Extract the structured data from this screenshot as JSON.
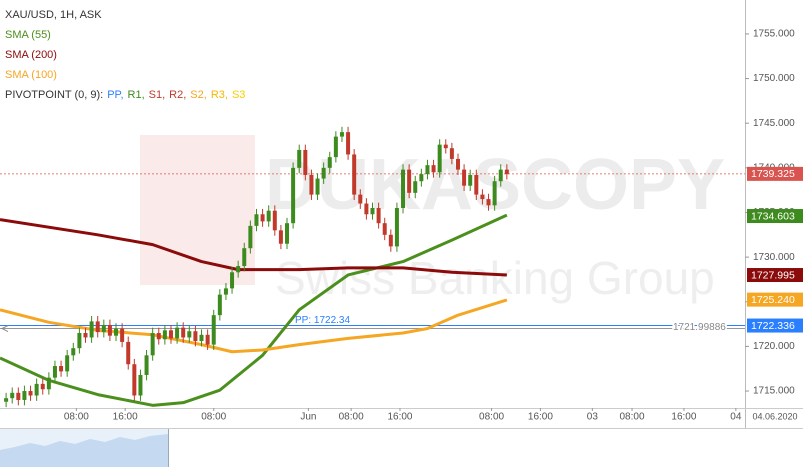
{
  "chart_data": {
    "type": "candlestick",
    "title": "XAU/USD, 1H, ASK",
    "watermark": [
      "DUKASCOPY",
      "Swiss Banking Group"
    ],
    "corner_label": "04.06.2020",
    "up_color": "#3d8b1e",
    "down_color": "#c0392b",
    "x": [
      1,
      2,
      3,
      4,
      5,
      6,
      7,
      8,
      9,
      10,
      11,
      12,
      13,
      14,
      15,
      16,
      17,
      18,
      19,
      20,
      21,
      22,
      23,
      24,
      25,
      26,
      27,
      28,
      29,
      30,
      31,
      32,
      33,
      34,
      35,
      36,
      37,
      38,
      39,
      40,
      41,
      42,
      43,
      44,
      45,
      46,
      47,
      48,
      49,
      50,
      51,
      52,
      53,
      54,
      55,
      56,
      57,
      58,
      59,
      60,
      61,
      62,
      63,
      64,
      65,
      66,
      67,
      68,
      69,
      70,
      71,
      72,
      73,
      74,
      75,
      76,
      77,
      78,
      79,
      80,
      81,
      82,
      83
    ],
    "open": [
      1713.8,
      1714.2,
      1714.8,
      1714.0,
      1715.0,
      1714.5,
      1715.8,
      1715.2,
      1716.5,
      1717.8,
      1717.2,
      1719.0,
      1719.8,
      1721.5,
      1721.0,
      1722.8,
      1721.6,
      1722.4,
      1721.2,
      1722.0,
      1720.5,
      1718.0,
      1714.5,
      1716.8,
      1719.0,
      1721.5,
      1720.8,
      1721.8,
      1720.9,
      1722.1,
      1721.0,
      1721.7,
      1720.6,
      1721.3,
      1720.2,
      1723.5,
      1725.8,
      1726.5,
      1728.3,
      1729.0,
      1731.0,
      1733.5,
      1734.8,
      1734.0,
      1735.2,
      1733.0,
      1731.5,
      1733.8,
      1740.0,
      1742.0,
      1739.2,
      1737.0,
      1738.8,
      1740.0,
      1741.2,
      1743.5,
      1744.0,
      1741.5,
      1737.0,
      1736.0,
      1734.8,
      1735.5,
      1733.8,
      1732.5,
      1731.2,
      1735.5,
      1739.8,
      1737.2,
      1738.5,
      1739.3,
      1740.3,
      1739.5,
      1742.6,
      1742.2,
      1741.0,
      1739.8,
      1738.0,
      1739.2,
      1737.0,
      1736.5,
      1735.8,
      1738.5,
      1739.8
    ],
    "high": [
      1714.8,
      1715.4,
      1715.4,
      1715.6,
      1715.6,
      1716.4,
      1716.4,
      1717.1,
      1718.4,
      1718.4,
      1719.6,
      1720.4,
      1722.1,
      1722.1,
      1723.4,
      1723.4,
      1723.0,
      1723.0,
      1722.6,
      1722.6,
      1721.1,
      1718.6,
      1717.4,
      1719.6,
      1722.1,
      1722.1,
      1722.4,
      1722.4,
      1722.7,
      1722.7,
      1722.3,
      1722.3,
      1721.9,
      1721.9,
      1724.1,
      1726.4,
      1727.1,
      1728.9,
      1729.6,
      1731.6,
      1734.1,
      1735.4,
      1735.4,
      1735.8,
      1735.8,
      1733.6,
      1734.4,
      1740.6,
      1742.6,
      1742.6,
      1739.8,
      1739.4,
      1740.6,
      1741.8,
      1744.1,
      1744.6,
      1744.6,
      1742.1,
      1737.6,
      1736.6,
      1736.1,
      1736.1,
      1734.4,
      1733.1,
      1736.1,
      1740.4,
      1740.4,
      1739.1,
      1739.9,
      1740.9,
      1740.9,
      1743.2,
      1743.2,
      1742.8,
      1741.6,
      1740.4,
      1739.8,
      1739.8,
      1737.6,
      1737.1,
      1739.1,
      1740.4,
      1740.4
    ],
    "low": [
      1713.2,
      1713.6,
      1713.4,
      1713.4,
      1713.9,
      1713.9,
      1714.6,
      1714.6,
      1715.9,
      1716.6,
      1716.6,
      1718.4,
      1719.2,
      1720.4,
      1720.4,
      1721.0,
      1721.0,
      1720.6,
      1720.6,
      1719.9,
      1717.4,
      1713.9,
      1713.9,
      1716.2,
      1718.4,
      1720.2,
      1720.2,
      1720.3,
      1720.3,
      1720.4,
      1720.4,
      1720.0,
      1720.0,
      1719.6,
      1719.6,
      1722.9,
      1725.2,
      1725.9,
      1727.7,
      1728.4,
      1730.4,
      1732.9,
      1733.4,
      1733.4,
      1732.4,
      1730.9,
      1730.9,
      1733.2,
      1739.4,
      1738.6,
      1736.4,
      1736.4,
      1738.2,
      1739.4,
      1740.6,
      1742.9,
      1740.9,
      1736.4,
      1735.4,
      1734.2,
      1734.2,
      1733.2,
      1731.9,
      1730.6,
      1730.6,
      1734.9,
      1736.6,
      1736.6,
      1737.9,
      1738.7,
      1738.9,
      1738.9,
      1741.6,
      1740.4,
      1739.2,
      1737.4,
      1737.4,
      1736.4,
      1735.9,
      1735.2,
      1735.2,
      1737.9,
      1738.7
    ],
    "close": [
      1714.2,
      1714.8,
      1714.0,
      1715.0,
      1714.5,
      1715.8,
      1715.2,
      1716.5,
      1717.8,
      1717.2,
      1719.0,
      1719.8,
      1721.5,
      1721.0,
      1722.8,
      1721.6,
      1722.4,
      1721.2,
      1722.0,
      1720.5,
      1718.0,
      1714.5,
      1716.8,
      1719.0,
      1721.5,
      1720.8,
      1721.8,
      1720.9,
      1722.1,
      1721.0,
      1721.7,
      1720.6,
      1721.3,
      1720.2,
      1723.5,
      1725.8,
      1726.5,
      1728.3,
      1729.0,
      1731.0,
      1733.5,
      1734.8,
      1734.0,
      1735.2,
      1733.0,
      1731.5,
      1733.8,
      1740.0,
      1742.0,
      1739.2,
      1737.0,
      1738.8,
      1740.0,
      1741.2,
      1743.5,
      1744.0,
      1741.5,
      1737.0,
      1736.0,
      1734.8,
      1735.5,
      1733.8,
      1732.5,
      1731.2,
      1735.5,
      1739.8,
      1737.2,
      1738.5,
      1739.3,
      1740.3,
      1739.5,
      1742.6,
      1742.2,
      1741.0,
      1739.8,
      1738.0,
      1739.2,
      1737.0,
      1736.5,
      1735.8,
      1738.5,
      1739.8,
      1739.3
    ],
    "overlays": [
      {
        "name": "SMA (55)",
        "color": "#4b8f1d",
        "x": [
          0,
          8,
          16,
          25,
          30,
          36,
          43,
          49,
          57,
          66,
          74,
          83
        ],
        "values": [
          1718.7,
          1716.2,
          1714.6,
          1713.4,
          1713.7,
          1715.1,
          1719.0,
          1724.1,
          1728.0,
          1729.5,
          1731.9,
          1734.7
        ]
      },
      {
        "name": "SMA (200)",
        "color": "#8b0a0a",
        "x": [
          0,
          16,
          25,
          33,
          39,
          49,
          57,
          66,
          74,
          83
        ],
        "values": [
          1734.2,
          1732.5,
          1731.4,
          1729.5,
          1728.6,
          1728.6,
          1728.8,
          1728.8,
          1728.3,
          1728.0
        ]
      },
      {
        "name": "SMA (100)",
        "color": "#f5a623",
        "x": [
          0,
          8,
          16,
          25,
          33,
          38,
          43,
          49,
          57,
          66,
          70,
          75,
          83
        ],
        "values": [
          1724.1,
          1722.7,
          1721.8,
          1721.3,
          1720.2,
          1719.4,
          1719.6,
          1720.2,
          1720.9,
          1721.5,
          1722.0,
          1723.5,
          1725.2
        ]
      }
    ],
    "pivot": {
      "label": "PIVOTPOINT (0, 9):",
      "items": [
        {
          "name": "PP,",
          "color": "#2a7fff"
        },
        {
          "name": "R1,",
          "color": "#3d8b1e"
        },
        {
          "name": "S1,",
          "color": "#c0392b"
        },
        {
          "name": "R2,",
          "color": "#c0392b"
        },
        {
          "name": "S2,",
          "color": "#f5a623"
        },
        {
          "name": "R3,",
          "color": "#f5b800"
        },
        {
          "name": "S3",
          "color": "#f5d000"
        }
      ]
    },
    "pivot_line": {
      "value": 1722.336,
      "label": "PP: 1722.34",
      "color": "#2a7fff"
    },
    "crosshair": {
      "value": 1721.99886,
      "label": "1721.99886"
    },
    "price_labels": [
      {
        "value": 1739.325,
        "label": "1739.325",
        "color": "#d9534f"
      },
      {
        "value": 1734.603,
        "label": "1734.603",
        "color": "#3d8b1e"
      },
      {
        "value": 1727.995,
        "label": "1727.995",
        "color": "#8b0a0a"
      },
      {
        "value": 1725.24,
        "label": "1725.240",
        "color": "#f5a623"
      },
      {
        "value": 1722.336,
        "label": "1722.336",
        "color": "#2a7fff"
      }
    ],
    "xlim": [
      0,
      122
    ],
    "xticks": [
      {
        "value": 12.5,
        "label": "08:00"
      },
      {
        "value": 20.5,
        "label": "16:00"
      },
      {
        "value": 35,
        "label": "08:00"
      },
      {
        "value": 50.5,
        "label": "Jun"
      },
      {
        "value": 57.5,
        "label": "08:00"
      },
      {
        "value": 65.5,
        "label": "16:00"
      },
      {
        "value": 80.5,
        "label": "08:00"
      },
      {
        "value": 88.5,
        "label": "16:00"
      },
      {
        "value": 97,
        "label": "03"
      },
      {
        "value": 103.5,
        "label": "08:00"
      },
      {
        "value": 112,
        "label": "16:00"
      },
      {
        "value": 120.5,
        "label": "04"
      }
    ],
    "ylim": [
      1713.1,
      1758.8
    ],
    "yticks": [
      {
        "value": 1715,
        "label": "1715.000"
      },
      {
        "value": 1720,
        "label": "1720.000"
      },
      {
        "value": 1725,
        "label": "1725.000"
      },
      {
        "value": 1730,
        "label": "1730.000"
      },
      {
        "value": 1735,
        "label": "1735.000"
      },
      {
        "value": 1740,
        "label": "1740.000"
      },
      {
        "value": 1745,
        "label": "1745.000"
      },
      {
        "value": 1750,
        "label": "1750.000"
      },
      {
        "value": 1755,
        "label": "1755.000"
      }
    ]
  }
}
